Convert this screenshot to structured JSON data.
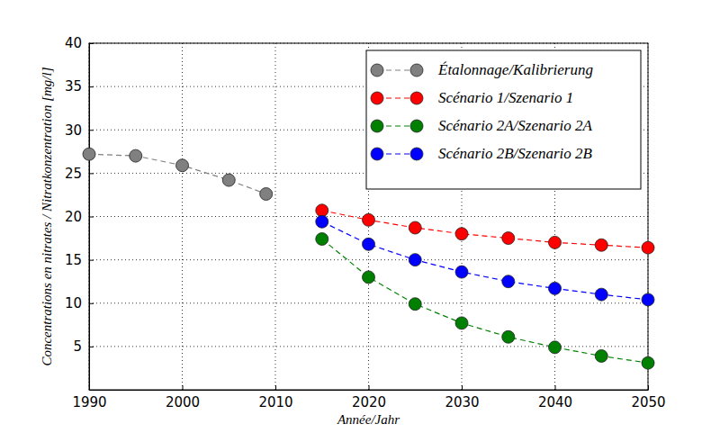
{
  "chart_data": {
    "type": "line",
    "x_label": "Année/Jahr",
    "y_label": "Concentrations en nitrates / Nitratkonzentration [mg/l]",
    "xlim": [
      1990,
      2050
    ],
    "xticks": [
      1990,
      2000,
      2010,
      2020,
      2030,
      2040,
      2050
    ],
    "ylim": [
      0,
      40
    ],
    "yticks": [
      5,
      10,
      15,
      20,
      25,
      30,
      35,
      40
    ],
    "grid": true,
    "legend": "upper right",
    "marker": "circle",
    "line_style": "dashed",
    "series": [
      {
        "name": "Étalonnage/Kalibrierung",
        "color": "#808080",
        "x": [
          1990,
          1995,
          2000,
          2005,
          2009
        ],
        "values": [
          27.2,
          27.0,
          25.9,
          24.2,
          22.6
        ]
      },
      {
        "name": "Scénario 1/Szenario 1",
        "color": "#ff0000",
        "x": [
          2015,
          2020,
          2025,
          2030,
          2035,
          2040,
          2045,
          2050
        ],
        "values": [
          20.7,
          19.6,
          18.7,
          18.0,
          17.5,
          17.0,
          16.7,
          16.4
        ]
      },
      {
        "name": "Scénario 2A/Szenario 2A",
        "color": "#008000",
        "x": [
          2015,
          2020,
          2025,
          2030,
          2035,
          2040,
          2045,
          2050
        ],
        "values": [
          17.4,
          13.0,
          9.9,
          7.7,
          6.1,
          4.9,
          3.9,
          3.1
        ]
      },
      {
        "name": "Scénario 2B/Szenario 2B",
        "color": "#0000ff",
        "x": [
          2015,
          2020,
          2025,
          2030,
          2035,
          2040,
          2045,
          2050
        ],
        "values": [
          19.4,
          16.8,
          15.0,
          13.6,
          12.5,
          11.7,
          11.0,
          10.4
        ]
      }
    ]
  }
}
